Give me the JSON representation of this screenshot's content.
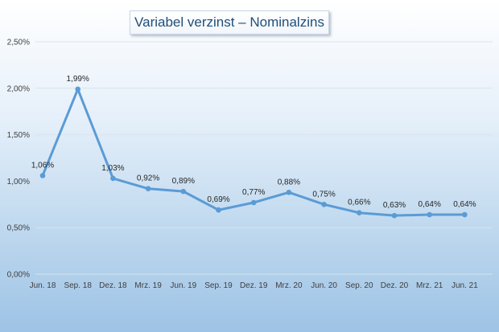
{
  "chart_data": {
    "type": "line",
    "title": "Variabel verzinst – Nominalzins",
    "xlabel": "",
    "ylabel": "",
    "categories": [
      "Jun. 18",
      "Sep. 18",
      "Dez. 18",
      "Mrz. 19",
      "Jun. 19",
      "Sep. 19",
      "Dez. 19",
      "Mrz. 20",
      "Jun. 20",
      "Sep. 20",
      "Dez. 20",
      "Mrz. 21",
      "Jun. 21"
    ],
    "series": [
      {
        "values": [
          1.06,
          1.99,
          1.03,
          0.92,
          0.89,
          0.69,
          0.77,
          0.88,
          0.75,
          0.66,
          0.63,
          0.64,
          0.64
        ],
        "labels": [
          "1,06%",
          "1,99%",
          "1,03%",
          "0,92%",
          "0,89%",
          "0,69%",
          "0,77%",
          "0,88%",
          "0,75%",
          "0,66%",
          "0,63%",
          "0,64%",
          "0,64%"
        ],
        "color": "#5b9bd5"
      }
    ],
    "ylim": [
      0,
      2.5
    ],
    "yticks": [
      0,
      0.5,
      1.0,
      1.5,
      2.0,
      2.5
    ],
    "ytick_labels": [
      "0,00%",
      "0,50%",
      "1,00%",
      "1,50%",
      "2,00%",
      "2,50%"
    ],
    "grid": true,
    "gridline_color": "#d9e3ee",
    "legend": "none"
  }
}
